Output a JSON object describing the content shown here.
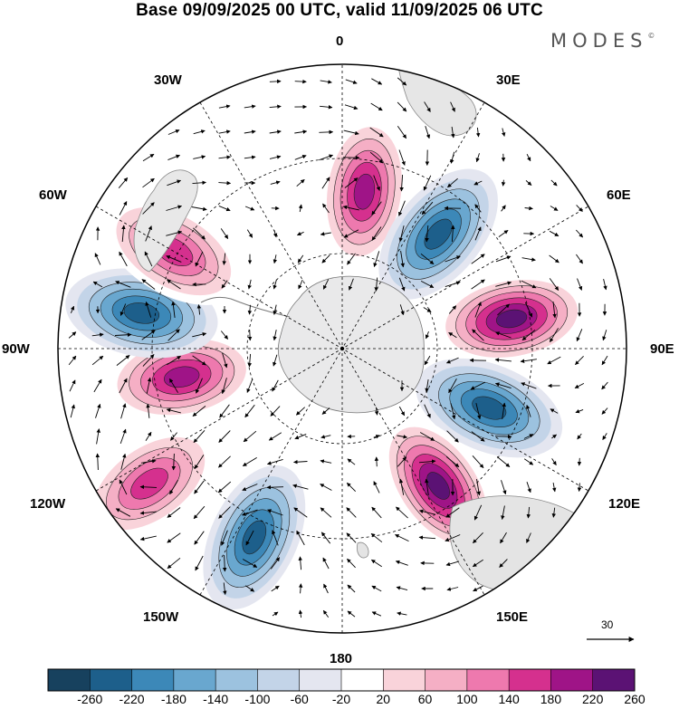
{
  "title": "Base 09/09/2025 00 UTC, valid 11/09/2025 06 UTC",
  "brand": {
    "name": "MODES",
    "mark": "©"
  },
  "map": {
    "projection": "south-polar-stereographic",
    "longitude_labels": {
      "lon_0": "0",
      "lon_30e": "30E",
      "lon_60e": "60E",
      "lon_90e": "90E",
      "lon_120e": "120E",
      "lon_150e": "150E",
      "lon_180": "180",
      "lon_150w": "150W",
      "lon_120w": "120W",
      "lon_90w": "90W",
      "lon_60w": "60W",
      "lon_30w": "30W"
    },
    "reference_vector": {
      "value": "30"
    },
    "anomaly_centers": [
      {
        "type": "positive",
        "strength": 240,
        "near": "0-15E"
      },
      {
        "type": "negative",
        "strength": 240,
        "near": "40E"
      },
      {
        "type": "positive",
        "strength": 260,
        "near": "80E"
      },
      {
        "type": "negative",
        "strength": 220,
        "near": "110E"
      },
      {
        "type": "positive",
        "strength": 260,
        "near": "145E"
      },
      {
        "type": "negative",
        "strength": 220,
        "near": "155W"
      },
      {
        "type": "positive",
        "strength": 180,
        "near": "125W"
      },
      {
        "type": "positive",
        "strength": 220,
        "near": "100W"
      },
      {
        "type": "negative",
        "strength": 240,
        "near": "80W"
      },
      {
        "type": "positive",
        "strength": 180,
        "near": "60W"
      }
    ]
  },
  "colorbar": {
    "ticks": [
      "-260",
      "-220",
      "-180",
      "-140",
      "-100",
      "-60",
      "-20",
      "20",
      "60",
      "100",
      "140",
      "180",
      "220",
      "260"
    ],
    "colors": [
      "#17415e",
      "#1d5f8b",
      "#3c88b8",
      "#69a7cf",
      "#9cc2df",
      "#c3d4e8",
      "#e4e6f0",
      "#ffffff",
      "#f9d3da",
      "#f5afc5",
      "#ee79ae",
      "#d5308e",
      "#9f1487",
      "#5b1274"
    ]
  }
}
